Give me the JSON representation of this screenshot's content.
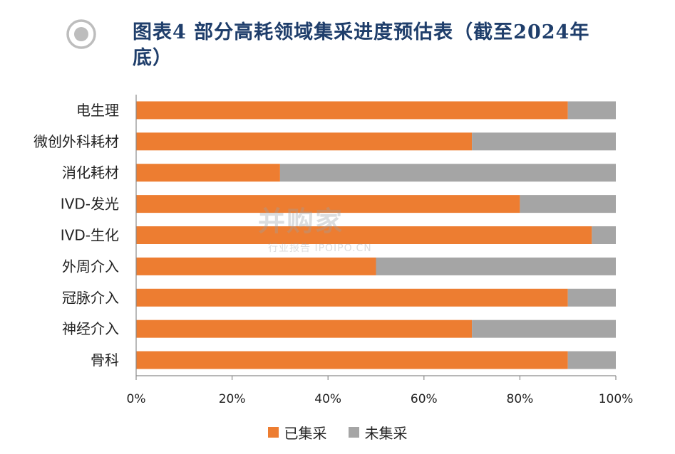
{
  "header": {
    "title_line1": "图表4 部分高耗领域集采进度预估表（截至2024年",
    "title_line2": "底）",
    "accent_color": "#b8b8b8"
  },
  "watermark": {
    "main": "并购家",
    "sub": "行业报告 IPOIPO.CN"
  },
  "chart_data": {
    "type": "bar",
    "orientation": "horizontal",
    "stacked": true,
    "categories": [
      "电生理",
      "微创外科耗材",
      "消化耗材",
      "IVD-发光",
      "IVD-生化",
      "外周介入",
      "冠脉介入",
      "神经介入",
      "骨科"
    ],
    "series": [
      {
        "name": "已集采",
        "color": "#ed7d31",
        "values": [
          0.9,
          0.7,
          0.3,
          0.8,
          0.95,
          0.5,
          0.9,
          0.7,
          0.9
        ]
      },
      {
        "name": "未集采",
        "color": "#a5a5a5",
        "values": [
          0.1,
          0.3,
          0.7,
          0.2,
          0.05,
          0.5,
          0.1,
          0.3,
          0.1
        ]
      }
    ],
    "xlim": [
      0,
      1
    ],
    "xticks": [
      "0%",
      "20%",
      "40%",
      "60%",
      "80%",
      "100%"
    ],
    "legend_position": "bottom",
    "grid": false
  }
}
